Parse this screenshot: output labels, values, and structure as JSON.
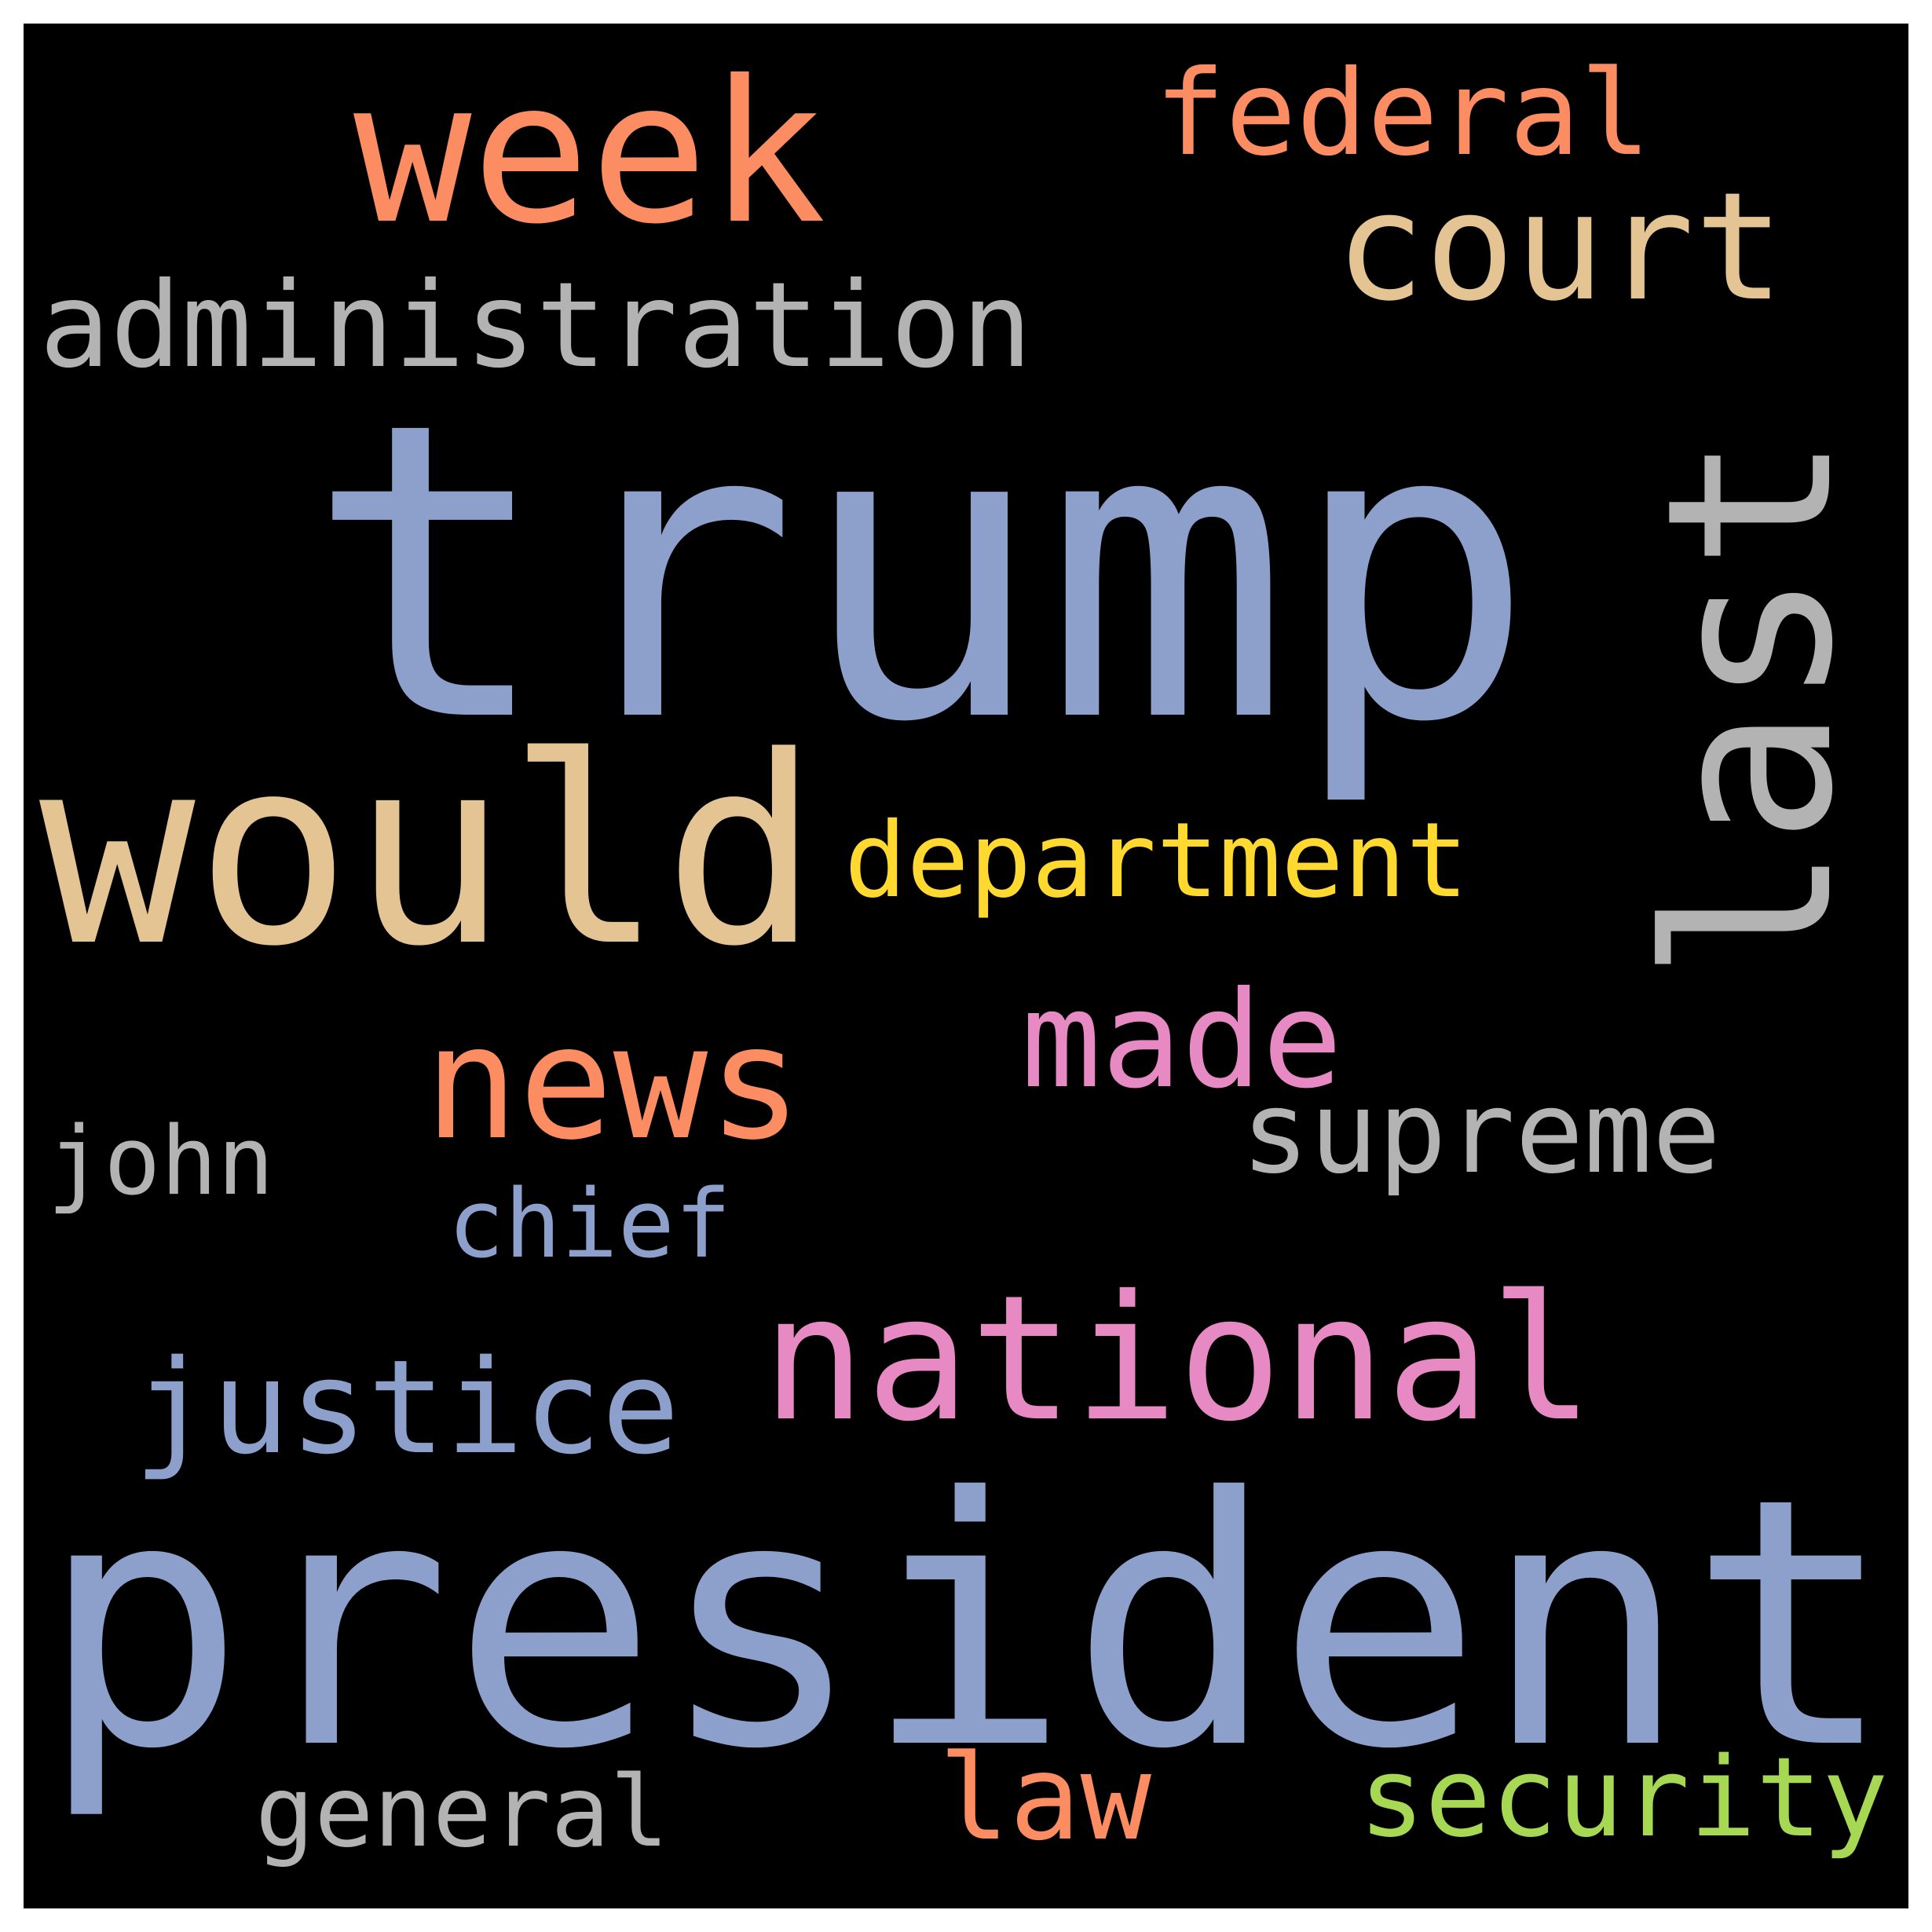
{
  "words": {
    "trump": {
      "text": "trump",
      "color": "#8da0cb"
    },
    "president": {
      "text": "president",
      "color": "#8da0cb"
    },
    "would": {
      "text": "would",
      "color": "#e5c494"
    },
    "last": {
      "text": "last",
      "color": "#b3b3b3"
    },
    "week": {
      "text": "week",
      "color": "#fc8d62"
    },
    "administration": {
      "text": "administration",
      "color": "#b3b3b3"
    },
    "court": {
      "text": "court",
      "color": "#e5c494"
    },
    "federal": {
      "text": "federal",
      "color": "#fc8d62"
    },
    "department": {
      "text": "department",
      "color": "#ffd92f"
    },
    "news": {
      "text": "news",
      "color": "#fc8d62"
    },
    "made": {
      "text": "made",
      "color": "#e78ac3"
    },
    "supreme": {
      "text": "supreme",
      "color": "#b3b3b3"
    },
    "national": {
      "text": "national",
      "color": "#e78ac3"
    },
    "justice": {
      "text": "justice",
      "color": "#8da0cb"
    },
    "john": {
      "text": "john",
      "color": "#b3b3b3"
    },
    "chief": {
      "text": "chief",
      "color": "#8da0cb"
    },
    "general": {
      "text": "general",
      "color": "#b3b3b3"
    },
    "law": {
      "text": "law",
      "color": "#fc8d62"
    },
    "security": {
      "text": "security",
      "color": "#a6d854"
    }
  }
}
